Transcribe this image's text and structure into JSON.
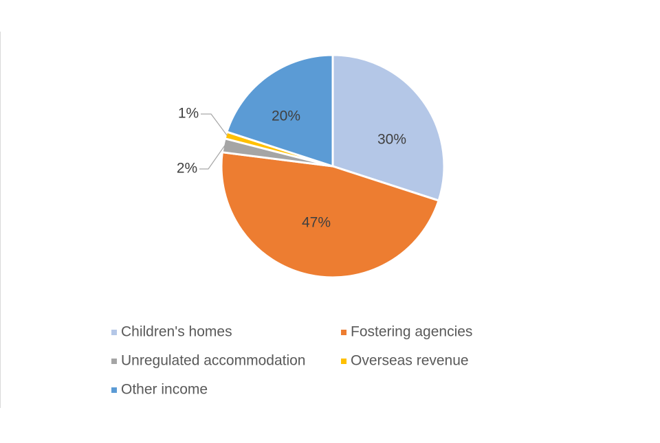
{
  "chart_data": {
    "type": "pie",
    "title": "",
    "legend_position": "bottom",
    "slices": [
      {
        "name": "Children's homes",
        "value": 30,
        "label": "30%",
        "color": "#B4C7E7"
      },
      {
        "name": "Fostering agencies",
        "value": 47,
        "label": "47%",
        "color": "#ED7D31"
      },
      {
        "name": "Unregulated accommodation",
        "value": 2,
        "label": "2%",
        "color": "#A5A5A5"
      },
      {
        "name": "Overseas revenue",
        "value": 1,
        "label": "1%",
        "color": "#FFC000"
      },
      {
        "name": "Other income",
        "value": 20,
        "label": "20%",
        "color": "#5B9BD5"
      }
    ]
  }
}
